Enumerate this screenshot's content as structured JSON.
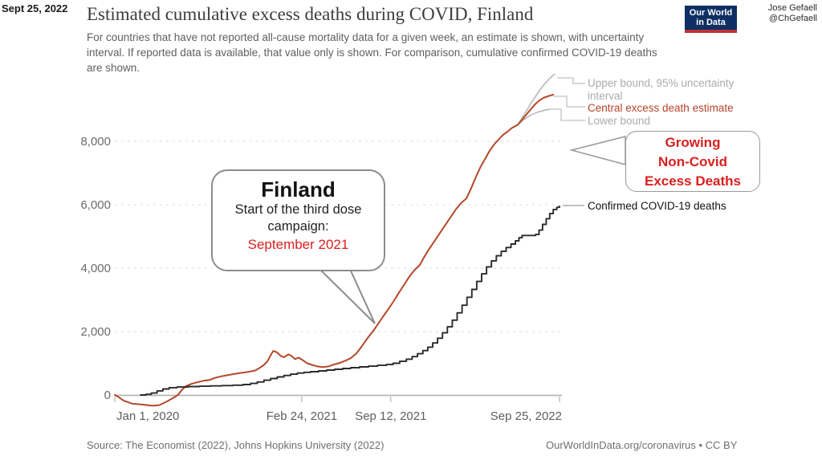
{
  "slide": {
    "date": "Sept 25, 2022",
    "credit_line1": "Jose Gefaell",
    "credit_line2": "@ChGefaell"
  },
  "header": {
    "title": "Estimated cumulative excess deaths during COVID, Finland",
    "subtitle": "For countries that have not reported all-cause mortality data for a given week, an estimate is shown, with uncertainty interval. If reported data is available, that value only is shown. For comparison, cumulative confirmed COVID-19 deaths are shown.",
    "logo_line1": "Our World",
    "logo_line2": "in Data"
  },
  "legend": {
    "upper": "Upper bound, 95% uncertainty interval",
    "central": "Central excess death estimate",
    "lower": "Lower bound",
    "confirmed": "Confirmed COVID-19 deaths"
  },
  "annotations": {
    "finland": {
      "title": "Finland",
      "line1": "Start of the third dose",
      "line2": "campaign:",
      "highlight": "September 2021"
    },
    "growing": {
      "line1": "Growing",
      "line2": "Non-Covid",
      "line3": "Excess Deaths"
    }
  },
  "footer": {
    "source": "Source: The Economist (2022), Johns Hopkins University (2022)",
    "license": "OurWorldInData.org/coronavirus • CC BY"
  },
  "colors": {
    "central_red": "#b34829",
    "bound_gray": "#b8b8b8",
    "confirmed_black": "#2a2a2a",
    "annotation_red": "#d9201f",
    "legend_central_red": "#b5432a",
    "logo_navy": "#0e2f63",
    "logo_stripe": "#bf3036",
    "gridline": "#e3e3e3",
    "axis": "#b5b5b5"
  },
  "chart_data": {
    "type": "line",
    "title": "Estimated cumulative excess deaths during COVID, Finland",
    "xlabel": "",
    "ylabel": "",
    "grid": "horizontal-dashed",
    "legend_position": "right-of-line-ends",
    "x_axis": {
      "unit": "days since Jan 1, 2020",
      "range_days": [
        0,
        999
      ],
      "tick_days": [
        0,
        420,
        620,
        999
      ],
      "tick_labels": [
        "Jan 1, 2020",
        "Feb 24, 2021",
        "Sep 12, 2021",
        "Sep 25, 2022"
      ]
    },
    "y_axis": {
      "tick_values": [
        0,
        2000,
        4000,
        6000,
        8000
      ],
      "tick_labels": [
        "0",
        "2,000",
        "4,000",
        "6,000",
        "8,000"
      ],
      "range": [
        -600,
        10300
      ]
    },
    "series": [
      {
        "name": "Upper bound, 95% uncertainty interval",
        "color": "#b8b8b8",
        "width": 1.6,
        "step": false,
        "points": [
          [
            905,
            8520
          ],
          [
            920,
            8850
          ],
          [
            935,
            9200
          ],
          [
            950,
            9520
          ],
          [
            965,
            9800
          ],
          [
            978,
            10000
          ],
          [
            988,
            10120
          ]
        ]
      },
      {
        "name": "Lower bound",
        "color": "#b8b8b8",
        "width": 1.6,
        "step": false,
        "points": [
          [
            905,
            8520
          ],
          [
            920,
            8700
          ],
          [
            935,
            8830
          ],
          [
            950,
            8920
          ],
          [
            965,
            8980
          ],
          [
            978,
            9010
          ]
        ]
      },
      {
        "name": "Central excess death estimate",
        "color": "#b34829",
        "width": 2,
        "step": false,
        "points": [
          [
            0,
            0
          ],
          [
            8,
            -60
          ],
          [
            20,
            -180
          ],
          [
            38,
            -270
          ],
          [
            60,
            -300
          ],
          [
            85,
            -340
          ],
          [
            100,
            -320
          ],
          [
            118,
            -200
          ],
          [
            135,
            -60
          ],
          [
            142,
            0
          ],
          [
            150,
            150
          ],
          [
            160,
            280
          ],
          [
            172,
            350
          ],
          [
            185,
            400
          ],
          [
            200,
            450
          ],
          [
            212,
            470
          ],
          [
            225,
            540
          ],
          [
            240,
            590
          ],
          [
            255,
            630
          ],
          [
            268,
            660
          ],
          [
            285,
            700
          ],
          [
            300,
            730
          ],
          [
            315,
            770
          ],
          [
            325,
            850
          ],
          [
            335,
            950
          ],
          [
            343,
            1060
          ],
          [
            350,
            1250
          ],
          [
            356,
            1390
          ],
          [
            365,
            1340
          ],
          [
            373,
            1230
          ],
          [
            380,
            1190
          ],
          [
            390,
            1280
          ],
          [
            398,
            1220
          ],
          [
            405,
            1130
          ],
          [
            413,
            1180
          ],
          [
            422,
            1100
          ],
          [
            432,
            1000
          ],
          [
            443,
            950
          ],
          [
            455,
            900
          ],
          [
            468,
            880
          ],
          [
            480,
            900
          ],
          [
            492,
            960
          ],
          [
            505,
            1010
          ],
          [
            518,
            1080
          ],
          [
            530,
            1160
          ],
          [
            542,
            1300
          ],
          [
            553,
            1500
          ],
          [
            563,
            1700
          ],
          [
            572,
            1870
          ],
          [
            582,
            2050
          ],
          [
            592,
            2250
          ],
          [
            603,
            2480
          ],
          [
            614,
            2700
          ],
          [
            626,
            2950
          ],
          [
            638,
            3220
          ],
          [
            650,
            3480
          ],
          [
            662,
            3740
          ],
          [
            674,
            3950
          ],
          [
            685,
            4100
          ],
          [
            695,
            4350
          ],
          [
            706,
            4600
          ],
          [
            718,
            4850
          ],
          [
            730,
            5100
          ],
          [
            742,
            5350
          ],
          [
            754,
            5600
          ],
          [
            766,
            5850
          ],
          [
            778,
            6050
          ],
          [
            790,
            6200
          ],
          [
            800,
            6500
          ],
          [
            812,
            6900
          ],
          [
            822,
            7200
          ],
          [
            832,
            7450
          ],
          [
            842,
            7700
          ],
          [
            852,
            7900
          ],
          [
            862,
            8050
          ],
          [
            872,
            8200
          ],
          [
            882,
            8300
          ],
          [
            892,
            8420
          ],
          [
            900,
            8480
          ],
          [
            905,
            8520
          ],
          [
            915,
            8680
          ],
          [
            925,
            8850
          ],
          [
            935,
            9020
          ],
          [
            945,
            9180
          ],
          [
            955,
            9300
          ],
          [
            965,
            9380
          ],
          [
            975,
            9430
          ],
          [
            985,
            9470
          ]
        ]
      },
      {
        "name": "Confirmed COVID-19 deaths",
        "color": "#2a2a2a",
        "width": 1.9,
        "step": true,
        "points": [
          [
            58,
            0
          ],
          [
            70,
            20
          ],
          [
            82,
            60
          ],
          [
            95,
            130
          ],
          [
            108,
            190
          ],
          [
            122,
            230
          ],
          [
            140,
            250
          ],
          [
            165,
            265
          ],
          [
            190,
            275
          ],
          [
            215,
            285
          ],
          [
            240,
            295
          ],
          [
            265,
            310
          ],
          [
            288,
            330
          ],
          [
            305,
            365
          ],
          [
            320,
            410
          ],
          [
            335,
            465
          ],
          [
            350,
            520
          ],
          [
            365,
            570
          ],
          [
            380,
            615
          ],
          [
            395,
            655
          ],
          [
            410,
            690
          ],
          [
            425,
            715
          ],
          [
            440,
            735
          ],
          [
            458,
            760
          ],
          [
            476,
            785
          ],
          [
            494,
            810
          ],
          [
            512,
            835
          ],
          [
            530,
            860
          ],
          [
            550,
            885
          ],
          [
            570,
            910
          ],
          [
            590,
            935
          ],
          [
            610,
            960
          ],
          [
            625,
            1000
          ],
          [
            640,
            1060
          ],
          [
            655,
            1130
          ],
          [
            668,
            1210
          ],
          [
            680,
            1300
          ],
          [
            692,
            1400
          ],
          [
            703,
            1510
          ],
          [
            714,
            1640
          ],
          [
            725,
            1790
          ],
          [
            736,
            1960
          ],
          [
            747,
            2150
          ],
          [
            758,
            2360
          ],
          [
            769,
            2590
          ],
          [
            780,
            2830
          ],
          [
            791,
            3080
          ],
          [
            802,
            3330
          ],
          [
            813,
            3580
          ],
          [
            824,
            3820
          ],
          [
            835,
            4040
          ],
          [
            846,
            4230
          ],
          [
            857,
            4390
          ],
          [
            868,
            4530
          ],
          [
            879,
            4650
          ],
          [
            890,
            4760
          ],
          [
            900,
            4860
          ],
          [
            908,
            4960
          ],
          [
            915,
            5030
          ],
          [
            945,
            5060
          ],
          [
            953,
            5200
          ],
          [
            961,
            5380
          ],
          [
            969,
            5560
          ],
          [
            977,
            5720
          ],
          [
            985,
            5850
          ],
          [
            993,
            5920
          ],
          [
            999,
            5950
          ]
        ]
      }
    ]
  }
}
